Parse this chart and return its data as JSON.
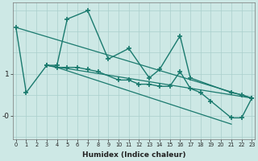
{
  "xlabel": "Humidex (Indice chaleur)",
  "bg_color": "#cde8e5",
  "grid_color": "#aacfcc",
  "line_color": "#1a7a6e",
  "x": [
    0,
    1,
    2,
    3,
    4,
    5,
    6,
    7,
    8,
    9,
    10,
    11,
    12,
    13,
    14,
    15,
    16,
    17,
    18,
    19,
    20,
    21,
    22,
    23
  ],
  "series1": [
    2.1,
    null,
    null,
    null,
    null,
    null,
    null,
    null,
    null,
    null,
    null,
    null,
    null,
    null,
    null,
    null,
    null,
    null,
    null,
    null,
    null,
    null,
    null,
    null
  ],
  "series2_x": [
    0,
    1,
    3,
    4,
    5,
    7,
    9,
    11,
    13,
    14,
    16,
    17,
    21,
    22,
    23
  ],
  "series2_y": [
    2.1,
    0.55,
    1.2,
    1.2,
    2.3,
    2.5,
    1.35,
    1.6,
    0.9,
    1.1,
    1.9,
    0.9,
    0.55,
    0.5,
    0.42
  ],
  "series3_x": [
    3,
    4,
    5,
    6,
    7,
    8,
    10,
    11,
    12,
    13,
    14,
    15,
    16,
    17,
    18,
    19,
    21,
    22,
    23
  ],
  "series3_y": [
    1.2,
    1.15,
    1.15,
    1.15,
    1.1,
    1.05,
    0.85,
    0.85,
    0.75,
    0.75,
    0.7,
    0.7,
    1.05,
    0.65,
    0.55,
    0.35,
    -0.05,
    -0.05,
    0.42
  ],
  "trend1_x": [
    0,
    23
  ],
  "trend1_y": [
    2.1,
    0.42
  ],
  "trend2_x": [
    3,
    23
  ],
  "trend2_y": [
    1.2,
    0.42
  ],
  "trend3_x": [
    4,
    21
  ],
  "trend3_y": [
    1.15,
    -0.2
  ],
  "ytick_positions": [
    1.0,
    0.0
  ],
  "ytick_labels": [
    "1",
    "-0"
  ],
  "ylim": [
    -0.55,
    2.7
  ],
  "xlim": [
    -0.3,
    23.3
  ],
  "figsize": [
    3.2,
    2.0
  ],
  "dpi": 100
}
